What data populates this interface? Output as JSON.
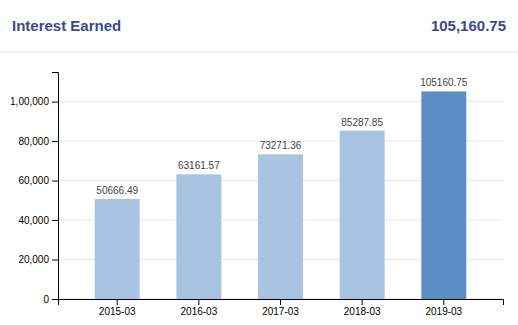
{
  "chart_data": {
    "type": "bar",
    "title": "Interest Earned",
    "subtitle": "105,160.75",
    "categories": [
      "2015-03",
      "2016-03",
      "2017-03",
      "2018-03",
      "2019-03"
    ],
    "values": [
      50666.49,
      63161.57,
      73271.36,
      85287.85,
      105160.75
    ],
    "colors": [
      "#a8c4e0",
      "#a8c4e0",
      "#a8c4e0",
      "#a8c4e0",
      "#5b8ec4"
    ],
    "ylim": [
      0,
      115000
    ],
    "yticks": [
      0,
      {
        "value": 20000,
        "label": "20,000"
      },
      {
        "value": 40000,
        "label": "40,000"
      },
      {
        "value": 60000,
        "label": "60,000"
      },
      {
        "value": 80000,
        "label": "80,000"
      },
      {
        "value": 100000,
        "label": "1,00,000"
      }
    ],
    "grid": true,
    "data_labels": true
  }
}
